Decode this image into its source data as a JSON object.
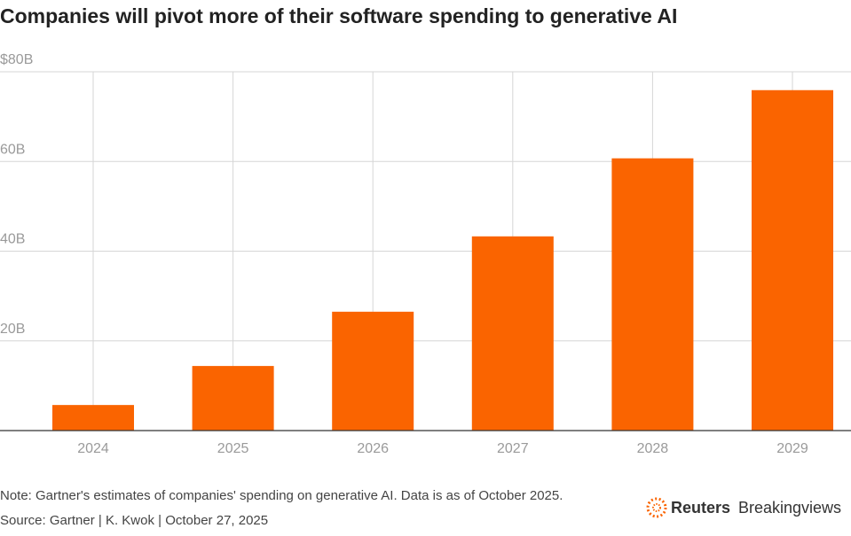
{
  "chart_data": {
    "type": "bar",
    "title": "Companies will pivot more of their software spending to generative AI",
    "categories": [
      "2024",
      "2025",
      "2026",
      "2027",
      "2028",
      "2029"
    ],
    "values": [
      5.7,
      14.4,
      26.5,
      43.3,
      60.7,
      75.9
    ],
    "color": "#fa6400",
    "ylim": [
      0,
      80
    ],
    "yticks": [
      {
        "value": 20,
        "label": "20B"
      },
      {
        "value": 40,
        "label": "40B"
      },
      {
        "value": 60,
        "label": "60B"
      },
      {
        "value": 80,
        "label": "$80B"
      }
    ],
    "grid": true,
    "note": "Note: Gartner's estimates of companies' spending on generative AI. Data is as of October 2025.",
    "source": "Source: Gartner | K. Kwok | October 27, 2025",
    "logo": {
      "brand": "Reuters",
      "product": "Breakingviews"
    }
  }
}
